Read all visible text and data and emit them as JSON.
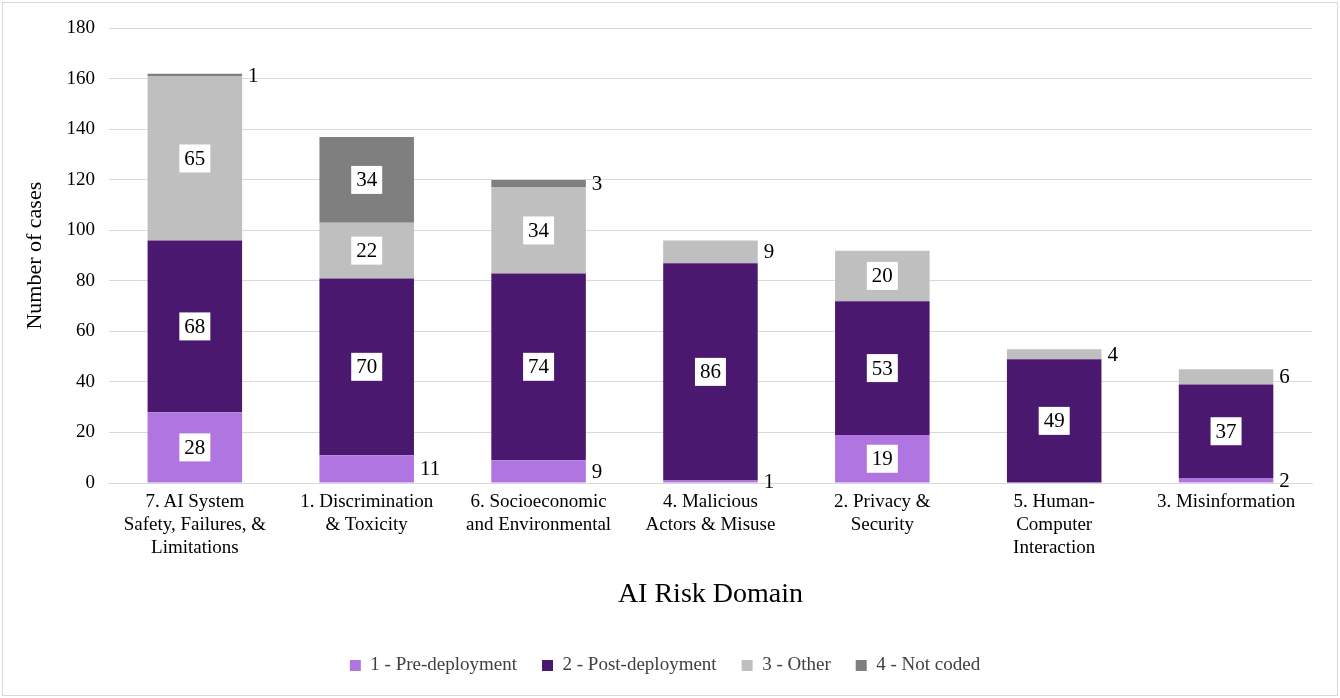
{
  "chart_data": {
    "type": "bar",
    "stacked": true,
    "xlabel": "AI Risk Domain",
    "ylabel": "Number of cases",
    "categories": [
      "7. AI System Safety, Failures, & Limitations",
      "1. Discrimination & Toxicity",
      "6. Socioeconomic and Environmental",
      "4. Malicious Actors & Misuse",
      "2. Privacy & Security",
      "5. Human-Computer Interaction",
      "3. Misinformation"
    ],
    "series": [
      {
        "name": "1 - Pre-deployment",
        "color": "#b175e1",
        "values": [
          28,
          11,
          9,
          1,
          19,
          null,
          2
        ]
      },
      {
        "name": "2 - Post-deployment",
        "color": "#4b1870",
        "values": [
          68,
          70,
          74,
          86,
          53,
          49,
          37
        ]
      },
      {
        "name": "3 - Other",
        "color": "#bfbfbf",
        "values": [
          65,
          22,
          34,
          9,
          20,
          4,
          6
        ]
      },
      {
        "name": "4 - Not coded",
        "color": "#7f7f7f",
        "values": [
          1,
          34,
          3,
          null,
          null,
          null,
          null
        ]
      }
    ],
    "ylim": [
      0,
      180
    ],
    "yticks": [
      0,
      20,
      40,
      60,
      80,
      100,
      120,
      140,
      160,
      180
    ],
    "grid": "y",
    "legend": "bottom",
    "data_labels": true
  }
}
